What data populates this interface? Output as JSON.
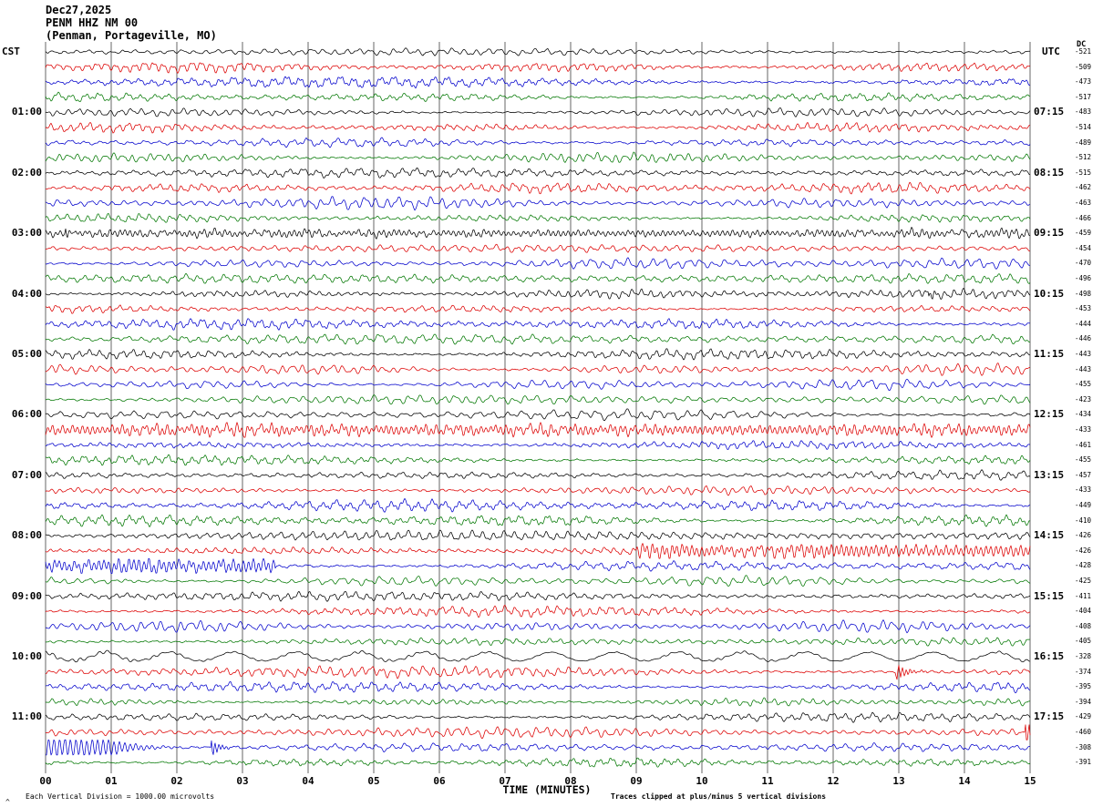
{
  "header": {
    "date": "Dec27,2025",
    "station": "PENM HHZ NM 00",
    "location": "(Penman, Portageville, MO)"
  },
  "axes": {
    "left_label": "CST",
    "right_label": "UTC",
    "dc_label": "DC",
    "x_axis_title": "TIME (MINUTES)",
    "left_times": [
      "01:00",
      "02:00",
      "03:00",
      "04:00",
      "05:00",
      "06:00",
      "07:00",
      "08:00",
      "09:00",
      "10:00",
      "11:00"
    ],
    "right_times": [
      "07:15",
      "08:15",
      "09:15",
      "10:15",
      "11:15",
      "12:15",
      "13:15",
      "14:15",
      "15:15",
      "16:15",
      "17:15"
    ],
    "x_ticks": [
      "00",
      "01",
      "02",
      "03",
      "04",
      "05",
      "06",
      "07",
      "08",
      "09",
      "10",
      "11",
      "12",
      "13",
      "14",
      "15"
    ]
  },
  "footer": {
    "left": "Each Vertical Division = 1000.00 microvolts",
    "right": "Traces clipped at plus/minus 5 vertical divisions",
    "corner_mark": "^"
  },
  "chart_data": {
    "type": "seismogram-helicorder",
    "title": "PENM HHZ NM 00 helicorder, Dec27,2025",
    "rows": 48,
    "minutes_per_row": 15,
    "first_row_start_cst": "00:00",
    "utc_offset_hours": 6,
    "x_range_minutes": [
      0,
      15
    ],
    "grid": "vertical lines every 1 minute",
    "microvolts_per_division": 1000.0,
    "clip_divisions": 5,
    "row_color_cycle": [
      "#000000",
      "#dd0000",
      "#0000cc",
      "#007700"
    ],
    "dc_offsets": [
      -521,
      -509,
      -473,
      -517,
      -483,
      -514,
      -489,
      -512,
      -515,
      -462,
      -463,
      -466,
      -459,
      -454,
      -470,
      -496,
      -498,
      -453,
      -444,
      -446,
      -443,
      -443,
      -455,
      -423,
      -434,
      -433,
      -461,
      -455,
      -457,
      -433,
      -449,
      -410,
      -426,
      -426,
      -428,
      -425,
      -411,
      -404,
      -408,
      -405,
      -328,
      -374,
      -395,
      -394,
      -429,
      -460,
      -308,
      -391
    ],
    "events": [
      {
        "row": 12,
        "kind": "dense",
        "start": 0,
        "end": 15,
        "gain": 1.5,
        "note": "elevated high-frequency noise across 03:00 CST black trace"
      },
      {
        "row": 12,
        "kind": "spike",
        "at": 0.3,
        "gain": 5,
        "decay": 0.08,
        "note": "small spike near start of 03:00 trace"
      },
      {
        "row": 16,
        "kind": "spike",
        "at": 13.45,
        "gain": 5,
        "decay": 0.08,
        "note": "small spike on 04:00 trace"
      },
      {
        "row": 25,
        "kind": "dense",
        "start": 0,
        "end": 15,
        "gain": 1.6,
        "note": "dense red trace 06:15 CST"
      },
      {
        "row": 33,
        "kind": "dense",
        "start": 9,
        "end": 15,
        "gain": 2.4,
        "note": "high-amplitude red band 08:15 CST minutes 9-15"
      },
      {
        "row": 34,
        "kind": "dense",
        "start": 0,
        "end": 3.5,
        "gain": 2.4,
        "note": "high-amplitude blue band 08:30 CST minutes 0-3.5"
      },
      {
        "row": 40,
        "kind": "lowfreq",
        "start": 0,
        "end": 15,
        "gain": 2.2,
        "note": "long-period swings on 10:00 CST black trace"
      },
      {
        "row": 41,
        "kind": "spike",
        "at": 12.95,
        "gain": 10,
        "decay": 0.15,
        "note": "clipped burst on 10:15 CST red trace near minute 13"
      },
      {
        "row": 45,
        "kind": "spike",
        "at": 14.93,
        "gain": 14,
        "decay": 0.3,
        "note": "clipped spike at right edge of 11:15 CST red trace"
      },
      {
        "row": 46,
        "kind": "burst",
        "start": 0,
        "end": 1.0,
        "gain": 9,
        "decay": 0.35,
        "note": "clipped event at start of 11:30 CST blue trace"
      },
      {
        "row": 46,
        "kind": "spike",
        "at": 2.52,
        "gain": 10,
        "decay": 0.12,
        "note": "clipped spike on 11:30 CST blue trace near minute 2.5"
      }
    ]
  }
}
